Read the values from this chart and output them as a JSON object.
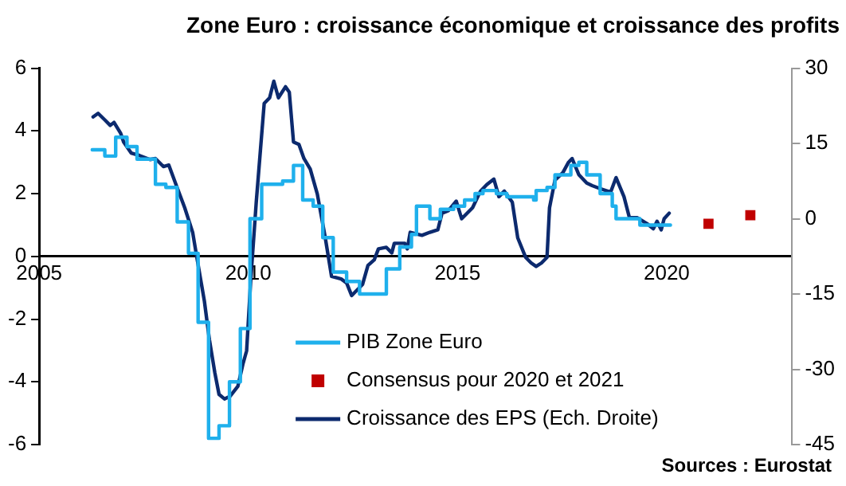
{
  "chart_data": {
    "type": "step",
    "title": "Zone Euro : croissance économique et croissance des profits",
    "annotations": [
      "Sources : Eurostat"
    ],
    "xlim": [
      2005,
      2023
    ],
    "xticks": [
      2005,
      2010,
      2015,
      2020
    ],
    "ylim": [
      -6,
      6
    ],
    "yticks": [
      -6,
      -4,
      -2,
      0,
      2,
      4,
      6
    ],
    "y2lim": [
      -45,
      30
    ],
    "y2ticks": [
      -45,
      -30,
      -15,
      0,
      15,
      30
    ],
    "grid": false,
    "legend": "bottom",
    "line_style": "solid",
    "series": [
      {
        "name": "PIB Zone Euro",
        "color": "#1fb0ec",
        "marker": "none",
        "x": [
          2006.27,
          2006.5,
          2006.57,
          2006.76,
          2006.83,
          2007.0,
          2007.1,
          2007.3,
          2007.34,
          2007.65,
          2007.78,
          2008.03,
          2008.22,
          2008.3,
          2008.48,
          2008.57,
          2008.67,
          2008.8,
          2008.92,
          2009.05,
          2009.24,
          2009.3,
          2009.45,
          2009.55,
          2009.75,
          2009.81,
          2009.94,
          2010.04,
          2010.16,
          2010.32,
          2010.76,
          2010.82,
          2011.0,
          2011.08,
          2011.23,
          2011.3,
          2011.46,
          2011.55,
          2011.69,
          2011.78,
          2011.94,
          2012.03,
          2012.22,
          2012.35,
          2012.54,
          2012.66,
          2013.1,
          2013.3,
          2013.49,
          2013.62,
          2013.8,
          2013.9,
          2014.02,
          2014.21,
          2014.34,
          2014.53,
          2014.59,
          2014.91,
          2015.17,
          2015.42,
          2015.61,
          2015.93,
          2016.18,
          2016.82,
          2016.88,
          2017.14,
          2017.33,
          2017.71,
          2017.9,
          2018.03,
          2018.09,
          2018.28,
          2018.41,
          2018.6,
          2018.7,
          2018.79,
          2019.11,
          2019.36,
          2020.09
        ],
        "values": [
          3.4,
          3.4,
          3.2,
          3.2,
          3.8,
          3.8,
          3.5,
          3.5,
          3.1,
          3.1,
          2.3,
          2.2,
          2.2,
          1.1,
          1.1,
          0.1,
          0.1,
          -2.1,
          -2.1,
          -5.8,
          -5.8,
          -5.4,
          -5.4,
          -4.0,
          -4.0,
          -2.3,
          -2.3,
          1.2,
          1.2,
          2.3,
          2.3,
          2.4,
          2.4,
          2.9,
          2.9,
          1.8,
          1.8,
          1.6,
          1.6,
          0.6,
          0.6,
          -0.5,
          -0.5,
          -0.8,
          -0.8,
          -1.2,
          -1.2,
          -0.4,
          -0.4,
          0.3,
          0.3,
          0.7,
          1.6,
          1.6,
          1.2,
          1.2,
          1.5,
          1.6,
          1.8,
          2.0,
          2.1,
          2.0,
          1.9,
          1.8,
          2.1,
          2.2,
          2.6,
          2.9,
          3.0,
          3.0,
          2.6,
          2.6,
          2.0,
          2.0,
          1.6,
          1.2,
          1.2,
          1.0,
          1.0
        ]
      },
      {
        "name": "Consensus pour 2020 et 2021",
        "type": "scatter",
        "axis": "y2",
        "color": "#c00000",
        "marker": "square",
        "x": [
          2021.0,
          2022.0
        ],
        "values": [
          -1,
          0.7
        ]
      },
      {
        "name": "Croissance des EPS (Ech. Droite)",
        "type": "line",
        "axis": "y2",
        "color": "#0c2a6e",
        "marker": "none",
        "x": [
          2006.29,
          2006.41,
          2006.57,
          2006.7,
          2006.79,
          2006.95,
          2007.02,
          2007.2,
          2007.4,
          2007.65,
          2007.78,
          2007.97,
          2008.1,
          2008.29,
          2008.48,
          2008.67,
          2008.77,
          2008.95,
          2009.07,
          2009.2,
          2009.3,
          2009.43,
          2009.56,
          2009.75,
          2009.87,
          2009.96,
          2010.06,
          2010.19,
          2010.29,
          2010.38,
          2010.51,
          2010.61,
          2010.72,
          2010.89,
          2010.98,
          2011.08,
          2011.21,
          2011.33,
          2011.48,
          2011.65,
          2011.84,
          2011.99,
          2012.22,
          2012.35,
          2012.47,
          2012.73,
          2012.86,
          2013.01,
          2013.11,
          2013.3,
          2013.43,
          2013.49,
          2013.74,
          2013.8,
          2013.87,
          2014.15,
          2014.34,
          2014.53,
          2014.63,
          2014.78,
          2014.97,
          2015.1,
          2015.36,
          2015.55,
          2015.7,
          2015.87,
          2015.99,
          2016.12,
          2016.31,
          2016.44,
          2016.63,
          2016.76,
          2016.88,
          2017.01,
          2017.14,
          2017.2,
          2017.33,
          2017.52,
          2017.65,
          2017.74,
          2017.9,
          2018.09,
          2018.22,
          2018.41,
          2018.66,
          2018.79,
          2018.98,
          2019.11,
          2019.3,
          2019.55,
          2019.68,
          2019.77,
          2019.87,
          2019.94,
          2020.06
        ],
        "values": [
          20.3,
          21,
          19.7,
          18.6,
          19.2,
          17,
          15.3,
          13.1,
          12.6,
          11.8,
          12,
          10.4,
          10.7,
          6.4,
          2.2,
          -2.7,
          -7.7,
          -16.4,
          -24.1,
          -30.7,
          -35,
          -35.9,
          -35.4,
          -33.4,
          -29,
          -26.3,
          -12,
          3.3,
          13.7,
          23,
          24.1,
          27.4,
          24.1,
          26.3,
          25.2,
          15.3,
          14.8,
          12,
          9.9,
          4.9,
          -3.8,
          -11.5,
          -12,
          -12.8,
          -15.3,
          -13.1,
          -9.3,
          -8.2,
          -6,
          -5.7,
          -6.8,
          -4.9,
          -4.9,
          -6,
          -2.7,
          -3.3,
          -2.7,
          -2.2,
          1.1,
          1.6,
          3.5,
          0,
          2.2,
          5.5,
          6.8,
          7.9,
          4.4,
          5.5,
          3.3,
          -3.8,
          -7.7,
          -8.8,
          -9.5,
          -8.8,
          -7.7,
          2.2,
          7.7,
          9.2,
          11.2,
          12,
          8.8,
          7.1,
          6.6,
          6,
          5.3,
          8.2,
          4.4,
          0.2,
          0.2,
          -1.1,
          -2,
          -0.5,
          -2.2,
          0,
          1.1
        ]
      }
    ]
  }
}
